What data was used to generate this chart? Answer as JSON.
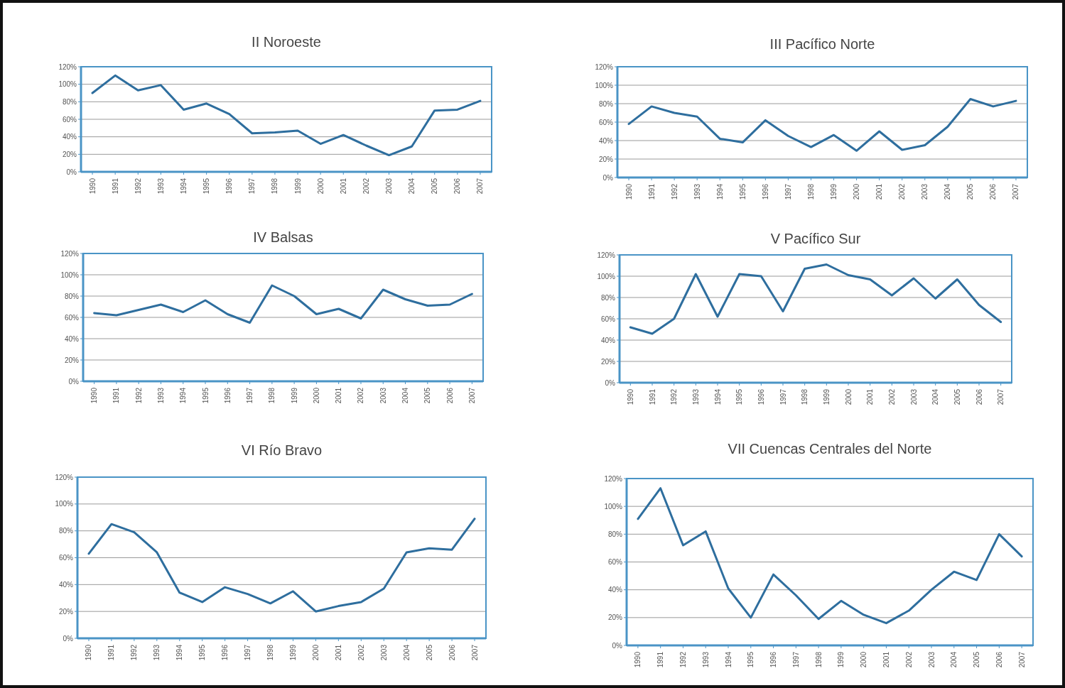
{
  "chart_data": [
    {
      "type": "line",
      "title": "II Noroeste",
      "categories": [
        "1990",
        "1991",
        "1992",
        "1993",
        "1994",
        "1995",
        "1996",
        "1997",
        "1998",
        "1999",
        "2000",
        "2001",
        "2002",
        "2003",
        "2004",
        "2005",
        "2006",
        "2007"
      ],
      "values": [
        90,
        110,
        93,
        99,
        71,
        78,
        66,
        44,
        45,
        47,
        32,
        42,
        30,
        19,
        29,
        70,
        71,
        81
      ],
      "color": "#2e6e9e",
      "ylim": [
        0,
        120
      ],
      "yticks": [
        {
          "value": 0,
          "label": "0%"
        },
        {
          "value": 20,
          "label": "20%"
        },
        {
          "value": 40,
          "label": "40%"
        },
        {
          "value": 60,
          "label": "60%"
        },
        {
          "value": 80,
          "label": "80%"
        },
        {
          "value": 100,
          "label": "100%"
        },
        {
          "value": 120,
          "label": "120%"
        }
      ],
      "grid": "y"
    },
    {
      "type": "line",
      "title": "III Pacífico Norte",
      "categories": [
        "1990",
        "1991",
        "1992",
        "1993",
        "1994",
        "1995",
        "1996",
        "1997",
        "1998",
        "1999",
        "2000",
        "2001",
        "2002",
        "2003",
        "2004",
        "2005",
        "2006",
        "2007"
      ],
      "values": [
        58,
        77,
        70,
        66,
        42,
        38,
        62,
        45,
        33,
        46,
        29,
        50,
        30,
        35,
        55,
        85,
        77,
        83
      ],
      "color": "#2e6e9e",
      "ylim": [
        0,
        120
      ],
      "yticks": [
        {
          "value": 0,
          "label": "0%"
        },
        {
          "value": 20,
          "label": "20%"
        },
        {
          "value": 40,
          "label": "40%"
        },
        {
          "value": 60,
          "label": "60%"
        },
        {
          "value": 80,
          "label": "80%"
        },
        {
          "value": 100,
          "label": "100%"
        },
        {
          "value": 120,
          "label": "120%"
        }
      ],
      "grid": "y"
    },
    {
      "type": "line",
      "title": "IV Balsas",
      "categories": [
        "1990",
        "1991",
        "1992",
        "1993",
        "1994",
        "1995",
        "1996",
        "1997",
        "1998",
        "1999",
        "2000",
        "2001",
        "2002",
        "2003",
        "2004",
        "2005",
        "2006",
        "2007"
      ],
      "values": [
        64,
        62,
        67,
        72,
        65,
        76,
        63,
        55,
        90,
        80,
        63,
        68,
        59,
        86,
        77,
        71,
        72,
        82
      ],
      "color": "#2e6e9e",
      "ylim": [
        0,
        120
      ],
      "yticks": [
        {
          "value": 0,
          "label": "0%"
        },
        {
          "value": 20,
          "label": "20%"
        },
        {
          "value": 40,
          "label": "40%"
        },
        {
          "value": 60,
          "label": "60%"
        },
        {
          "value": 80,
          "label": "80%"
        },
        {
          "value": 100,
          "label": "100%"
        },
        {
          "value": 120,
          "label": "120%"
        }
      ],
      "grid": "y"
    },
    {
      "type": "line",
      "title": "V Pacífico Sur",
      "categories": [
        "1990",
        "1991",
        "1992",
        "1993",
        "1994",
        "1995",
        "1996",
        "1997",
        "1998",
        "1999",
        "2000",
        "2001",
        "2002",
        "2003",
        "2004",
        "2005",
        "2006",
        "2007"
      ],
      "values": [
        52,
        46,
        60,
        102,
        62,
        102,
        100,
        67,
        107,
        111,
        101,
        97,
        82,
        98,
        79,
        97,
        73,
        57
      ],
      "color": "#2e6e9e",
      "ylim": [
        0,
        120
      ],
      "yticks": [
        {
          "value": 0,
          "label": "0%"
        },
        {
          "value": 20,
          "label": "20%"
        },
        {
          "value": 40,
          "label": "40%"
        },
        {
          "value": 60,
          "label": "60%"
        },
        {
          "value": 80,
          "label": "80%"
        },
        {
          "value": 100,
          "label": "100%"
        },
        {
          "value": 120,
          "label": "120%"
        }
      ],
      "grid": "y"
    },
    {
      "type": "line",
      "title": "VI Río Bravo",
      "categories": [
        "1990",
        "1991",
        "1992",
        "1993",
        "1994",
        "1995",
        "1996",
        "1997",
        "1998",
        "1999",
        "2000",
        "2001",
        "2002",
        "2003",
        "2004",
        "2005",
        "2006",
        "2007"
      ],
      "values": [
        63,
        85,
        79,
        64,
        34,
        27,
        38,
        33,
        26,
        35,
        20,
        24,
        27,
        37,
        64,
        67,
        66,
        89
      ],
      "color": "#2e6e9e",
      "ylim": [
        0,
        120
      ],
      "yticks": [
        {
          "value": 0,
          "label": "0%"
        },
        {
          "value": 20,
          "label": "20%"
        },
        {
          "value": 40,
          "label": "40%"
        },
        {
          "value": 60,
          "label": "60%"
        },
        {
          "value": 80,
          "label": "80%"
        },
        {
          "value": 100,
          "label": "100%"
        },
        {
          "value": 120,
          "label": "120%"
        }
      ],
      "grid": "y"
    },
    {
      "type": "line",
      "title": "VII Cuencas Centrales del Norte",
      "categories": [
        "1990",
        "1991",
        "1992",
        "1993",
        "1994",
        "1995",
        "1996",
        "1997",
        "1998",
        "1999",
        "2000",
        "2001",
        "2002",
        "2003",
        "2004",
        "2005",
        "2006",
        "2007"
      ],
      "values": [
        91,
        113,
        72,
        82,
        41,
        20,
        51,
        36,
        19,
        32,
        22,
        16,
        25,
        40,
        53,
        47,
        80,
        64
      ],
      "color": "#2e6e9e",
      "ylim": [
        0,
        120
      ],
      "yticks": [
        {
          "value": 0,
          "label": "0%"
        },
        {
          "value": 20,
          "label": "20%"
        },
        {
          "value": 40,
          "label": "40%"
        },
        {
          "value": 60,
          "label": "60%"
        },
        {
          "value": 80,
          "label": "80%"
        },
        {
          "value": 100,
          "label": "100%"
        },
        {
          "value": 120,
          "label": "120%"
        }
      ],
      "grid": "y"
    }
  ]
}
